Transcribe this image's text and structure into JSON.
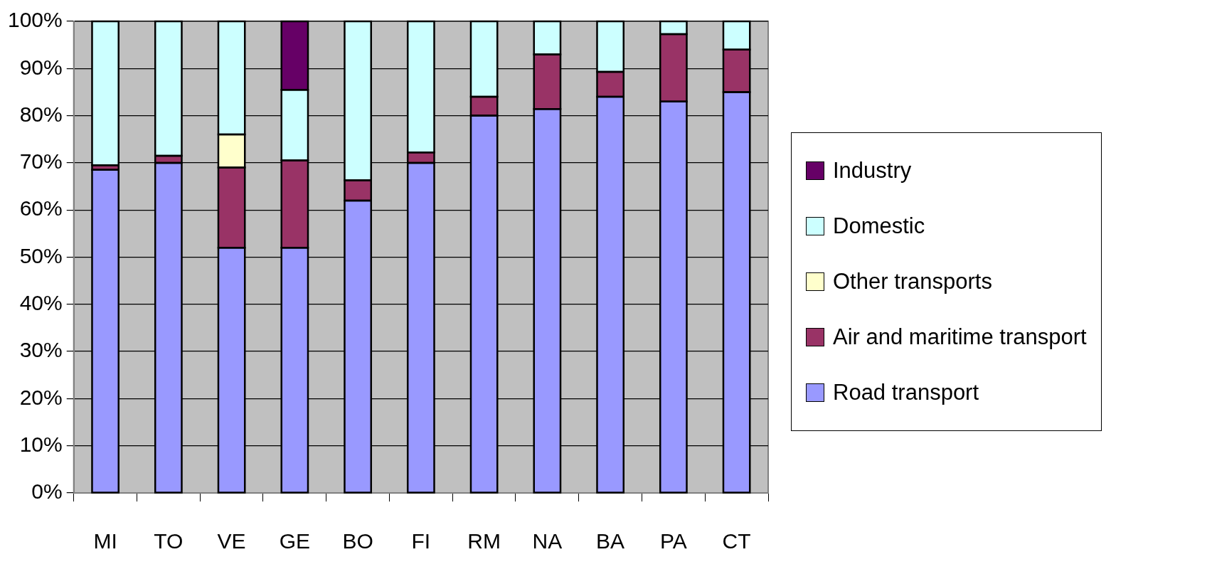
{
  "chart_data": {
    "type": "bar",
    "stacked": true,
    "categories": [
      "MI",
      "TO",
      "VE",
      "GE",
      "BO",
      "FI",
      "RM",
      "NA",
      "BA",
      "PA",
      "CT"
    ],
    "series": [
      {
        "name": "Road transport",
        "color": "#9999ff",
        "values": [
          68.5,
          70,
          52,
          52,
          62,
          70,
          80,
          81.4,
          84,
          83,
          85
        ]
      },
      {
        "name": "Air and maritime transport",
        "color": "#993366",
        "values": [
          1,
          1.5,
          17,
          18.5,
          4.3,
          2.2,
          4,
          11.6,
          5.3,
          14.3,
          9
        ]
      },
      {
        "name": "Other transports",
        "color": "#ffffcc",
        "values": [
          null,
          null,
          7,
          null,
          null,
          null,
          null,
          null,
          null,
          null,
          null
        ]
      },
      {
        "name": "Domestic",
        "color": "#ccffff",
        "values": [
          30.5,
          28.5,
          24,
          15,
          33.7,
          27.8,
          16,
          7,
          10.7,
          2.7,
          6
        ]
      },
      {
        "name": "Industry",
        "color": "#660066",
        "values": [
          null,
          null,
          null,
          14.5,
          null,
          null,
          null,
          null,
          null,
          null,
          null
        ]
      }
    ],
    "ylim": [
      0,
      100
    ],
    "yticks": [
      {
        "value": 0,
        "label": "0%"
      },
      {
        "value": 10,
        "label": "10%"
      },
      {
        "value": 20,
        "label": "20%"
      },
      {
        "value": 30,
        "label": "30%"
      },
      {
        "value": 40,
        "label": "40%"
      },
      {
        "value": 50,
        "label": "50%"
      },
      {
        "value": 60,
        "label": "60%"
      },
      {
        "value": 70,
        "label": "70%"
      },
      {
        "value": 80,
        "label": "80%"
      },
      {
        "value": 90,
        "label": "90%"
      },
      {
        "value": 100,
        "label": "100%"
      }
    ],
    "grid": "y",
    "legend": "right"
  }
}
